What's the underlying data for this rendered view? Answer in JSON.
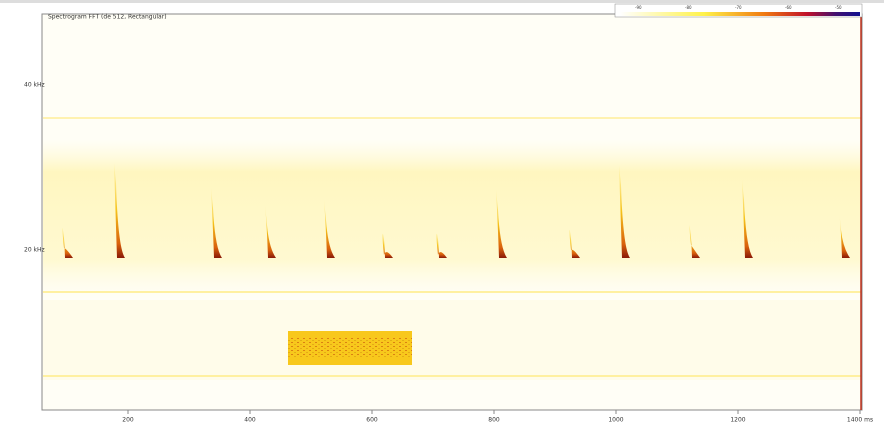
{
  "window": {
    "title": "Spectrogram FFT (de 512, Rectangular)"
  },
  "color_scale": {
    "labels": [
      "-90",
      "-80",
      "-70",
      "-60",
      "-50"
    ]
  },
  "y_axis": {
    "labels": [
      "40 kHz",
      "20 kHz"
    ]
  },
  "x_axis": {
    "labels": [
      "200",
      "400",
      "600",
      "800",
      "1000",
      "1200",
      "1400 ms"
    ]
  }
}
